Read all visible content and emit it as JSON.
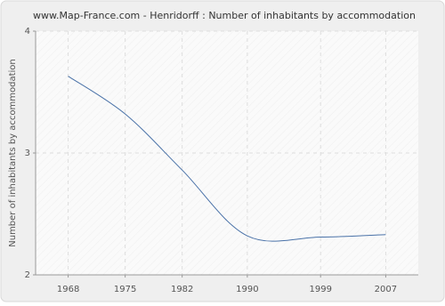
{
  "chart_data": {
    "type": "line",
    "title": "www.Map-France.com - Henridorff : Number of inhabitants by accommodation",
    "y_label": "Number of inhabitants by accommodation",
    "x": [
      1968,
      1975,
      1982,
      1990,
      1999,
      2007
    ],
    "series": [
      {
        "name": "Henridorff",
        "color": "#4a72a8",
        "values": [
          3.63,
          3.32,
          2.86,
          2.32,
          2.31,
          2.33
        ]
      }
    ],
    "xlim": [
      1964,
      2011
    ],
    "xticks": [
      1968,
      1975,
      1982,
      1990,
      1999,
      2007
    ],
    "ylim": [
      2,
      4
    ],
    "yticks": [
      2,
      3,
      4
    ],
    "grid": true
  }
}
